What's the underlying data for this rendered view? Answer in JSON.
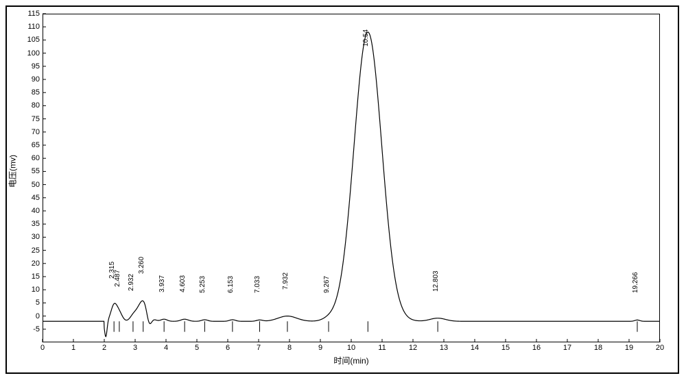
{
  "chromatogram": {
    "type": "line",
    "xlabel": "时间(min)",
    "ylabel": "电压(mv)",
    "xlim": [
      0,
      20
    ],
    "ylim": [
      -10,
      115
    ],
    "xtick_step": 1,
    "ytick_step": 5,
    "background_color": "#ffffff",
    "grid": false,
    "line_color": "#000000",
    "line_width": 1.2,
    "label_fontsize": 12,
    "tick_fontsize": 11,
    "peak_label_fontsize": 10,
    "frame_border_color": "#000000",
    "peaks": [
      {
        "rt": 2.315,
        "height": 6,
        "width": 0.1,
        "label": "2.315"
      },
      {
        "rt": 2.487,
        "height": 3,
        "width": 0.1,
        "label": "2.487"
      },
      {
        "rt": 2.932,
        "height": 1.5,
        "width": 0.1,
        "label": "2.932"
      },
      {
        "rt": 3.26,
        "height": 8,
        "width": 0.18,
        "label": "3.260"
      },
      {
        "rt": 3.937,
        "height": 0.8,
        "width": 0.1,
        "label": "3.937"
      },
      {
        "rt": 4.603,
        "height": 0.8,
        "width": 0.12,
        "label": "4.603"
      },
      {
        "rt": 5.253,
        "height": 0.6,
        "width": 0.1,
        "label": "5.253"
      },
      {
        "rt": 6.153,
        "height": 0.6,
        "width": 0.1,
        "label": "6.153"
      },
      {
        "rt": 7.033,
        "height": 0.5,
        "width": 0.1,
        "label": "7.033"
      },
      {
        "rt": 7.932,
        "height": 2.0,
        "width": 0.3,
        "label": "7.932"
      },
      {
        "rt": 9.267,
        "height": 0.7,
        "width": 0.2,
        "label": "9.267"
      },
      {
        "rt": 10.54,
        "height": 110,
        "width": 0.45,
        "label": "10.54"
      },
      {
        "rt": 12.803,
        "height": 1.2,
        "width": 0.25,
        "label": "12.803"
      },
      {
        "rt": 19.266,
        "height": 0.5,
        "width": 0.08,
        "label": "19.266"
      }
    ],
    "baseline": -2,
    "injection_x": 2.0,
    "injection_dip_y": -8,
    "post_peak3_dip_y": -7
  }
}
